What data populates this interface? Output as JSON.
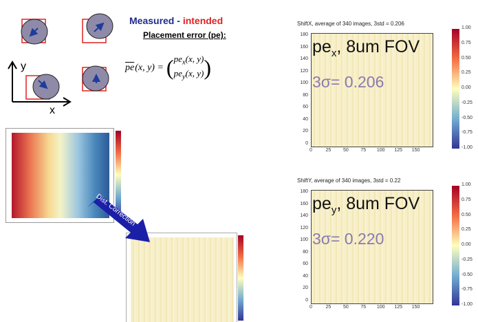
{
  "legend": {
    "measured": "Measured",
    "dash": "-",
    "intended": "intended"
  },
  "pe_title": "Placement error (pe):",
  "axes": {
    "y": "y",
    "x": "x"
  },
  "equation": {
    "lhs_vec": "pe",
    "lhs_args": "(x, y) =",
    "row1": "pe",
    "row1_sub": "x",
    "row1_args": "(x, y)",
    "row2": "pe",
    "row2_sub": "y",
    "row2_args": "(x, y)"
  },
  "arrow_label": "Dist. Correction",
  "panels": [
    {
      "title": "ShiftX, average of 340 images, 3std = 0.206",
      "label": "pe",
      "label_sub": "x",
      "label_rest": ", 8um FOV",
      "sigma": "3σ= 0.206",
      "yticks": [
        "180",
        "160",
        "140",
        "120",
        "100",
        "80",
        "60",
        "40",
        "20",
        "0"
      ],
      "xticks": [
        "0",
        "25",
        "50",
        "75",
        "100",
        "125",
        "150"
      ],
      "colorbar": [
        "1.00",
        "0.75",
        "0.50",
        "0.25",
        "0.00",
        "-0.25",
        "-0.50",
        "-0.75",
        "-1.00"
      ]
    },
    {
      "title": "ShiftY, average of 340 images, 3std = 0.22",
      "label": "pe",
      "label_sub": "y",
      "label_rest": ", 8um FOV",
      "sigma": "3σ= 0.220",
      "yticks": [
        "180",
        "160",
        "140",
        "120",
        "100",
        "80",
        "60",
        "40",
        "20",
        "0"
      ],
      "xticks": [
        "0",
        "25",
        "50",
        "75",
        "100",
        "125",
        "150"
      ],
      "colorbar": [
        "1.00",
        "0.75",
        "0.50",
        "0.25",
        "0.00",
        "-0.25",
        "-0.50",
        "-0.75",
        "-1.00"
      ]
    }
  ]
}
